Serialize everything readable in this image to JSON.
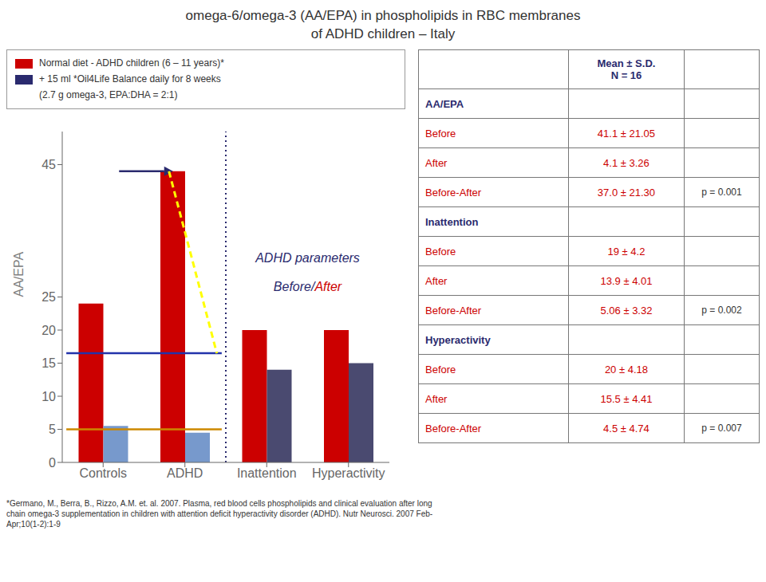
{
  "chart_data": {
    "type": "bar",
    "title": "omega-6/omega-3 (AA/EPA) in phospholipids in RBC membranes\nof ADHD children – Italy",
    "categories": [
      "Controls",
      "ADHD",
      "Inattention",
      "Hyperactivity"
    ],
    "series": [
      {
        "name": "Normal diet - ADHD children (6 – 11 years)*",
        "color": "#cc0000",
        "values": [
          24,
          44,
          20,
          20
        ]
      },
      {
        "name": "+ 15 ml *Oil4Life Balance daily for 8 weeks",
        "color": "#2a2a6e",
        "colors": [
          "#7799cc",
          "#7799cc",
          "#4a4a70",
          "#4a4a70"
        ],
        "values": [
          5.5,
          4.5,
          14,
          15
        ]
      }
    ],
    "legend_note": "(2.7 g omega-3,  EPA:DHA = 2:1)",
    "ylabel": "AA/EPA",
    "ylim": [
      0,
      50
    ],
    "yticks": [
      0,
      5,
      10,
      15,
      20,
      25,
      45
    ],
    "grid": false,
    "annotations": [
      {
        "type": "hline",
        "y": 16.5,
        "from": "Controls",
        "to": "ADHD",
        "color": "#2233aa"
      },
      {
        "type": "hline",
        "y": 5,
        "from": "Controls",
        "to": "ADHD",
        "color": "#cc8800"
      },
      {
        "type": "separator",
        "before": "Inattention",
        "color": "#2a2a6e",
        "line_style": "dotted"
      },
      {
        "type": "arrow",
        "from": "Controls",
        "to": "ADHD",
        "y": 44,
        "color": "#2a2a6e"
      },
      {
        "type": "line",
        "x": "ADHD",
        "y_from": 44,
        "y_to": 16.5,
        "color": "yellow",
        "line_style": "dashed"
      },
      {
        "type": "text",
        "parts": [
          {
            "text": "ADHD parameters",
            "color": "#2a2a6e"
          }
        ]
      },
      {
        "type": "text",
        "parts": [
          {
            "text": "Before/",
            "color": "#2a2a6e"
          },
          {
            "text": "After",
            "color": "#cc0000"
          }
        ]
      }
    ],
    "table": {
      "header": "Mean ± S.D.\nN = 16",
      "sections": [
        {
          "label": "AA/EPA",
          "rows": [
            {
              "label": "Before",
              "value": "41.1 ± 21.05"
            },
            {
              "label": "After",
              "value": "4.1 ± 3.26"
            },
            {
              "label": "Before-After",
              "value": "37.0 ± 21.30",
              "pval": "p = 0.001"
            }
          ]
        },
        {
          "label": "Inattention",
          "rows": [
            {
              "label": "Before",
              "value": "19 ± 4.2"
            },
            {
              "label": "After",
              "value": "13.9 ± 4.01"
            },
            {
              "label": "Before-After",
              "value": "5.06 ± 3.32",
              "pval": "p = 0.002"
            }
          ]
        },
        {
          "label": "Hyperactivity",
          "rows": [
            {
              "label": "Before",
              "value": "20 ± 4.18"
            },
            {
              "label": "After",
              "value": "15.5 ± 4.41"
            },
            {
              "label": "Before-After",
              "value": "4.5 ± 4.74",
              "pval": "p = 0.007"
            }
          ]
        }
      ]
    },
    "footnote": "*Germano, M., Berra, B., Rizzo, A.M. et. al. 2007.  Plasma, red blood cells phospholipids and clinical evaluation after long\nchain omega-3 supplementation in children with attention deficit hyperactivity disorder (ADHD). Nutr Neurosci. 2007 Feb-\nApr;10(1-2):1-9"
  }
}
